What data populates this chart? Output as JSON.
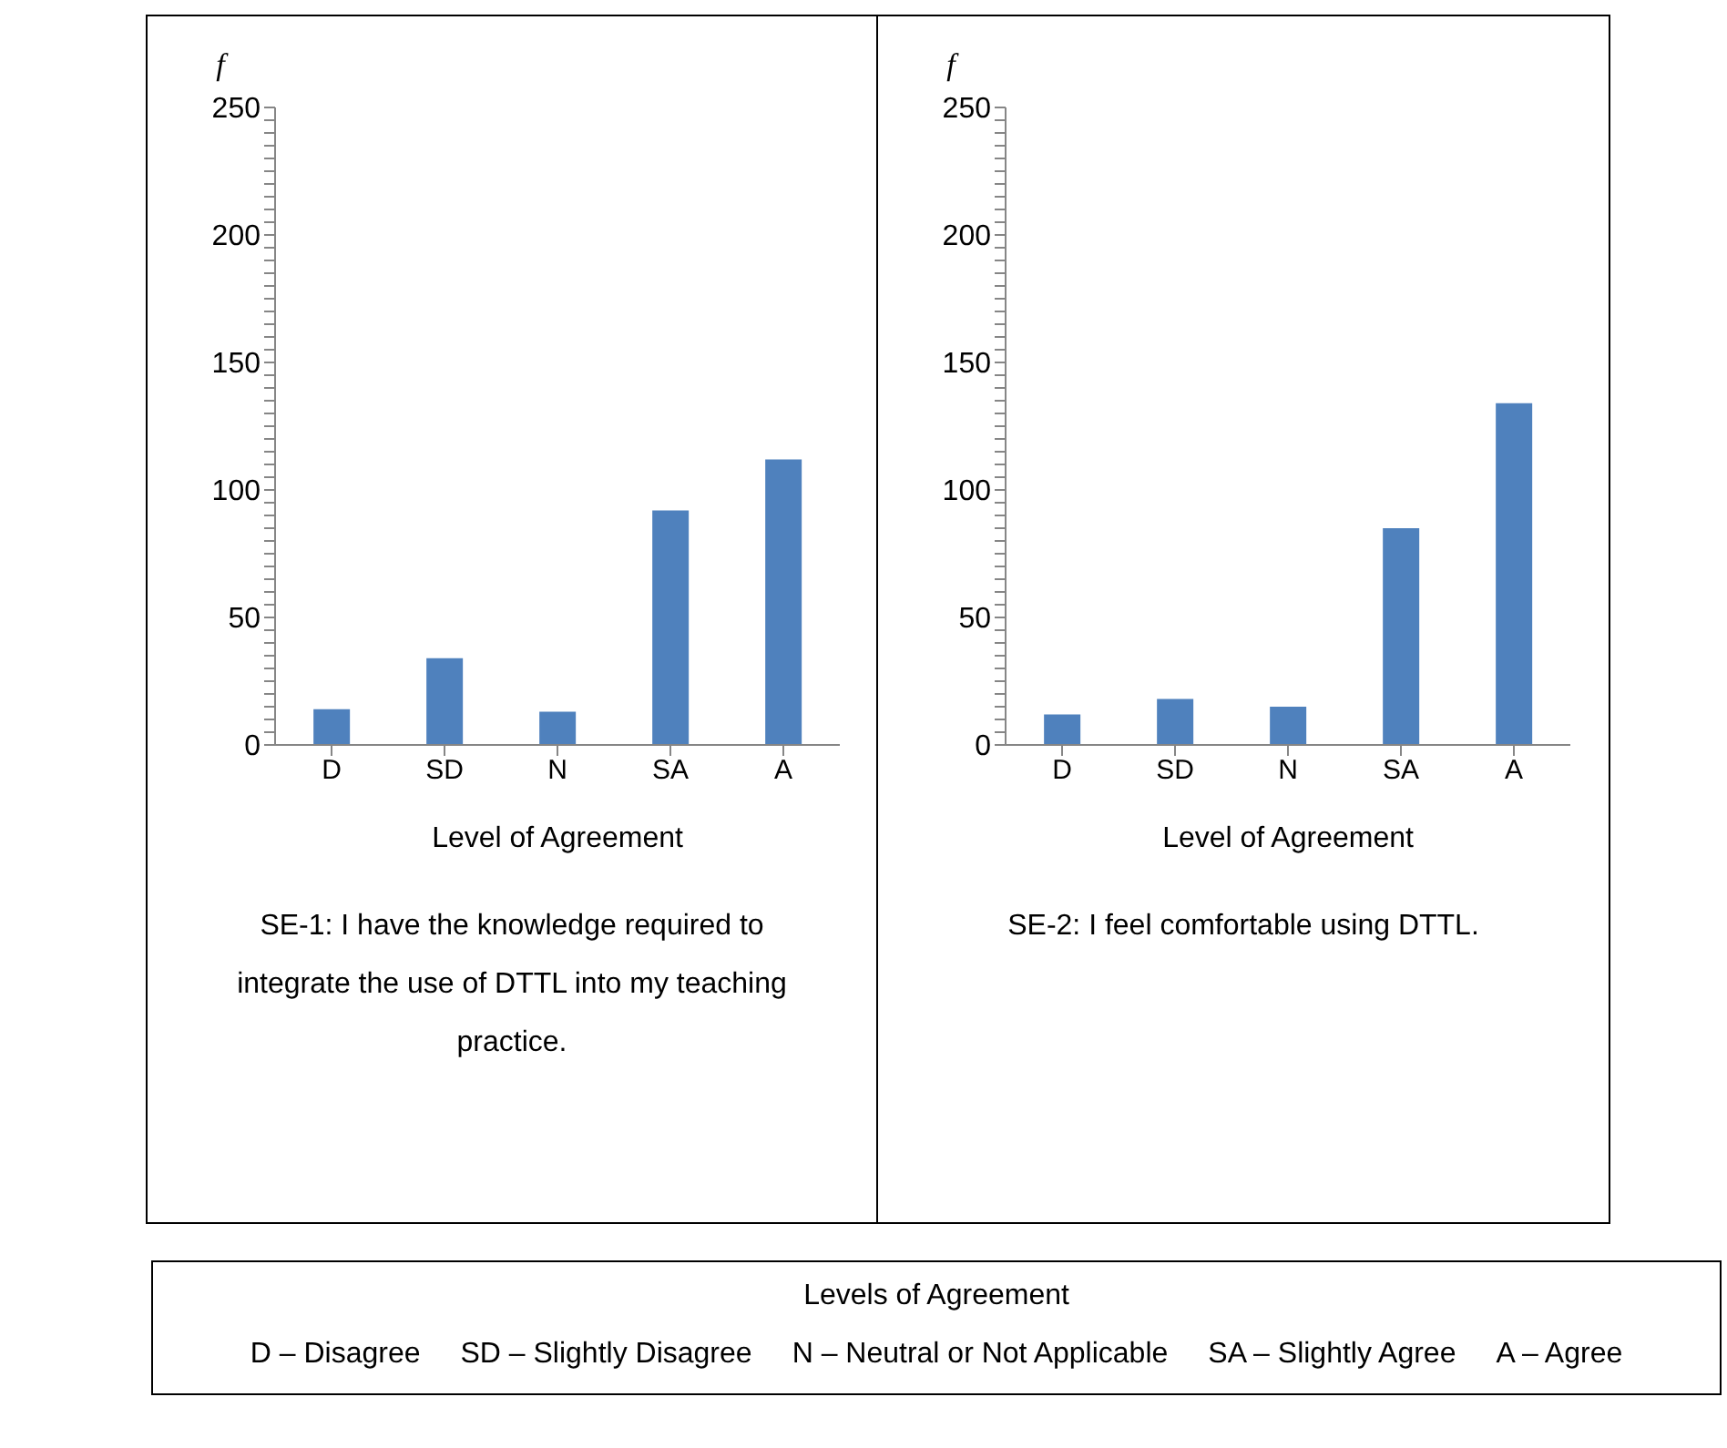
{
  "chart_data": [
    {
      "type": "bar",
      "categories": [
        "D",
        "SD",
        "N",
        "SA",
        "A"
      ],
      "values": [
        14,
        34,
        13,
        92,
        112
      ],
      "color": "#4f81bd",
      "xlabel": "Level of Agreement",
      "ylabel": "f",
      "ylim": [
        0,
        250
      ],
      "yticks": [
        0,
        {
          "value": 5,
          "label": null
        },
        {
          "value": 10,
          "label": null
        },
        {
          "value": 15,
          "label": null
        },
        {
          "value": 20,
          "label": null
        },
        {
          "value": 25,
          "label": null
        },
        {
          "value": 30,
          "label": null
        },
        {
          "value": 35,
          "label": null
        },
        {
          "value": 40,
          "label": null
        },
        {
          "value": 45,
          "label": null
        },
        50,
        {
          "value": 55,
          "label": null
        },
        {
          "value": 60,
          "label": null
        },
        {
          "value": 65,
          "label": null
        },
        {
          "value": 70,
          "label": null
        },
        {
          "value": 75,
          "label": null
        },
        {
          "value": 80,
          "label": null
        },
        {
          "value": 85,
          "label": null
        },
        {
          "value": 90,
          "label": null
        },
        {
          "value": 95,
          "label": null
        },
        100,
        {
          "value": 105,
          "label": null
        },
        {
          "value": 110,
          "label": null
        },
        {
          "value": 115,
          "label": null
        },
        {
          "value": 120,
          "label": null
        },
        {
          "value": 125,
          "label": null
        },
        {
          "value": 130,
          "label": null
        },
        {
          "value": 135,
          "label": null
        },
        {
          "value": 140,
          "label": null
        },
        {
          "value": 145,
          "label": null
        },
        150,
        {
          "value": 155,
          "label": null
        },
        {
          "value": 160,
          "label": null
        },
        {
          "value": 165,
          "label": null
        },
        {
          "value": 170,
          "label": null
        },
        {
          "value": 175,
          "label": null
        },
        {
          "value": 180,
          "label": null
        },
        {
          "value": 185,
          "label": null
        },
        {
          "value": 190,
          "label": null
        },
        {
          "value": 195,
          "label": null
        },
        200,
        {
          "value": 205,
          "label": null
        },
        {
          "value": 210,
          "label": null
        },
        {
          "value": 215,
          "label": null
        },
        {
          "value": 220,
          "label": null
        },
        {
          "value": 225,
          "label": null
        },
        {
          "value": 230,
          "label": null
        },
        {
          "value": 235,
          "label": null
        },
        {
          "value": 240,
          "label": null
        },
        {
          "value": 245,
          "label": null
        },
        250
      ],
      "annotations": [
        "SE-1: I have the knowledge required to integrate the use of DTTL into my teaching practice."
      ]
    },
    {
      "type": "bar",
      "categories": [
        "D",
        "SD",
        "N",
        "SA",
        "A"
      ],
      "values": [
        12,
        18,
        15,
        85,
        134
      ],
      "color": "#4f81bd",
      "xlabel": "Level of Agreement",
      "ylabel": "f",
      "ylim": [
        0,
        250
      ],
      "yticks": [
        0,
        {
          "value": 5,
          "label": null
        },
        {
          "value": 10,
          "label": null
        },
        {
          "value": 15,
          "label": null
        },
        {
          "value": 20,
          "label": null
        },
        {
          "value": 25,
          "label": null
        },
        {
          "value": 30,
          "label": null
        },
        {
          "value": 35,
          "label": null
        },
        {
          "value": 40,
          "label": null
        },
        {
          "value": 45,
          "label": null
        },
        50,
        {
          "value": 55,
          "label": null
        },
        {
          "value": 60,
          "label": null
        },
        {
          "value": 65,
          "label": null
        },
        {
          "value": 70,
          "label": null
        },
        {
          "value": 75,
          "label": null
        },
        {
          "value": 80,
          "label": null
        },
        {
          "value": 85,
          "label": null
        },
        {
          "value": 90,
          "label": null
        },
        {
          "value": 95,
          "label": null
        },
        100,
        {
          "value": 105,
          "label": null
        },
        {
          "value": 110,
          "label": null
        },
        {
          "value": 115,
          "label": null
        },
        {
          "value": 120,
          "label": null
        },
        {
          "value": 125,
          "label": null
        },
        {
          "value": 130,
          "label": null
        },
        {
          "value": 135,
          "label": null
        },
        {
          "value": 140,
          "label": null
        },
        {
          "value": 145,
          "label": null
        },
        150,
        {
          "value": 155,
          "label": null
        },
        {
          "value": 160,
          "label": null
        },
        {
          "value": 165,
          "label": null
        },
        {
          "value": 170,
          "label": null
        },
        {
          "value": 175,
          "label": null
        },
        {
          "value": 180,
          "label": null
        },
        {
          "value": 185,
          "label": null
        },
        {
          "value": 190,
          "label": null
        },
        {
          "value": 195,
          "label": null
        },
        200,
        {
          "value": 205,
          "label": null
        },
        {
          "value": 210,
          "label": null
        },
        {
          "value": 215,
          "label": null
        },
        {
          "value": 220,
          "label": null
        },
        {
          "value": 225,
          "label": null
        },
        {
          "value": 230,
          "label": null
        },
        {
          "value": 235,
          "label": null
        },
        {
          "value": 240,
          "label": null
        },
        {
          "value": 245,
          "label": null
        },
        250
      ],
      "annotations": [
        "SE-2: I feel comfortable using DTTL."
      ]
    },
    {
      "type": "other",
      "title": "Levels of Agreement",
      "annotations": [
        "D – Disagree",
        "SD – Slightly Disagree",
        "N – Neutral or Not Applicable",
        "SA – Slightly Agree",
        "A – Agree"
      ]
    }
  ]
}
